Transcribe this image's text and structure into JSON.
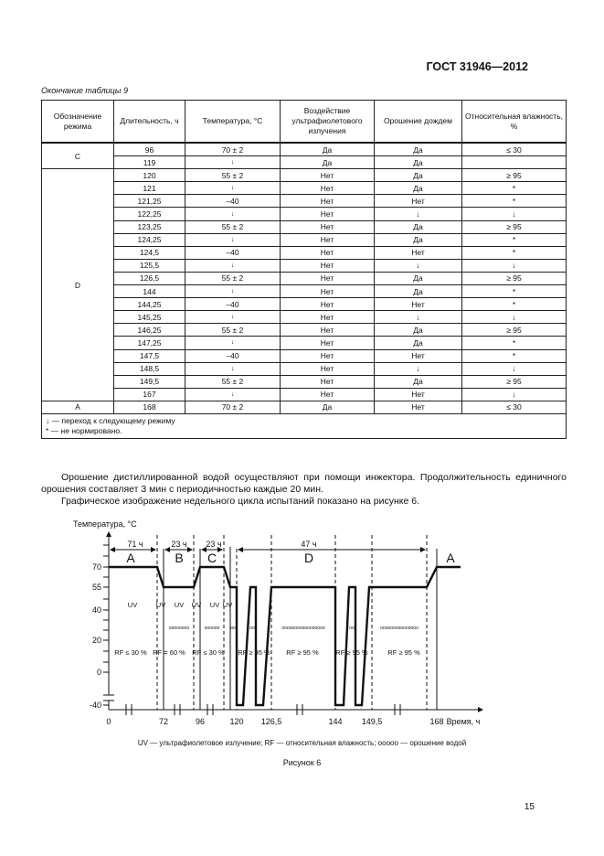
{
  "header": "ГОСТ 31946—2012",
  "table_caption": "Окончание таблицы 9",
  "columns": [
    "Обозначение режима",
    "Длительность, ч",
    "Температура, °С",
    "Воздействие ультрафиолетового излучения",
    "Орошение дождем",
    "Относительная влажность, %"
  ],
  "groups": [
    {
      "mode": "C",
      "rows": [
        [
          "96",
          "70 ± 2",
          "Да",
          "Да",
          "≤ 30"
        ],
        [
          "119",
          "↓",
          "Да",
          "Да",
          ""
        ]
      ]
    },
    {
      "mode": "D",
      "rows": [
        [
          "120",
          "55 ± 2",
          "Нет",
          "Да",
          "≥ 95"
        ],
        [
          "121",
          "↓",
          "Нет",
          "Да",
          "*"
        ],
        [
          "121,25",
          "–40",
          "Нет",
          "Нет",
          "*"
        ],
        [
          "122,25",
          "↓",
          "Нет",
          "↓",
          "↓"
        ],
        [
          "123,25",
          "55 ± 2",
          "Нет",
          "Да",
          "≥ 95"
        ],
        [
          "124,25",
          "↓",
          "Нет",
          "Да",
          "*"
        ],
        [
          "124,5",
          "–40",
          "Нет",
          "Нет",
          "*"
        ],
        [
          "125,5",
          "↓",
          "Нет",
          "↓",
          "↓"
        ],
        [
          "126,5",
          "55 ± 2",
          "Нет",
          "Да",
          "≥ 95"
        ],
        [
          "144",
          "↓",
          "Нет",
          "Да",
          "*"
        ],
        [
          "144,25",
          "–40",
          "Нет",
          "Нет",
          "*"
        ],
        [
          "145,25",
          "↓",
          "Нет",
          "↓",
          "↓"
        ],
        [
          "146,25",
          "55 ± 2",
          "Нет",
          "Да",
          "≥ 95"
        ],
        [
          "147,25",
          "↓",
          "Нет",
          "Да",
          "*"
        ],
        [
          "147,5",
          "–40",
          "Нет",
          "Нет",
          "*"
        ],
        [
          "148,5",
          "↓",
          "Нет",
          "↓",
          "↓"
        ],
        [
          "149,5",
          "55 ± 2",
          "Нет",
          "Да",
          "≥ 95"
        ],
        [
          "167",
          "↓",
          "Нет",
          "Нет",
          "↓"
        ]
      ]
    },
    {
      "mode": "A",
      "rows": [
        [
          "168",
          "70 ± 2",
          "Да",
          "Нет",
          "≤ 30"
        ]
      ]
    }
  ],
  "notes": [
    "↓ — переход к следующему режиму",
    "* — не нормировано."
  ],
  "paragraphs": [
    "Орошение дистиллированной водой осуществляют при помощи инжектора. Продолжительность единичного орошения составляет 3 мин с периодичностью каждые 20 мин.",
    "Графическое изображение недельного цикла испытаний показано на рисунке 6."
  ],
  "figure": {
    "y_label": "Температура, °С",
    "x_label": "Время, ч",
    "y_ticks": [
      "70",
      "55",
      "40",
      "20",
      "0",
      "-40"
    ],
    "x_ticks": [
      "0",
      "72",
      "96",
      "120",
      "126,5",
      "144",
      "149,5",
      "168"
    ],
    "durations": [
      "71 ч",
      "23 ч",
      "23 ч",
      "47 ч"
    ],
    "modes": [
      "A",
      "B",
      "C",
      "D",
      "A"
    ],
    "uv": [
      "UV",
      "UV",
      "UV",
      "UV",
      "UV",
      "UV"
    ],
    "rf": [
      "RF ≤ 30 %",
      "RF = 60 %",
      "RF ≤ 30 %",
      "RF ≥ 95 %",
      "RF ≥ 95 %",
      "RF ≥ 95 %",
      "RF ≥ 95 %"
    ],
    "rain": [
      "oooooooo",
      "oooooo",
      "oo",
      "oo",
      "ooooooooooooooooo",
      "oo",
      "ooooooooooooooo"
    ],
    "legend": "UV — ультрафиолетовое излучение; RF — относительная влажность; ооооо — орошение водой",
    "caption": "Рисунок 6"
  },
  "page_number": "15"
}
